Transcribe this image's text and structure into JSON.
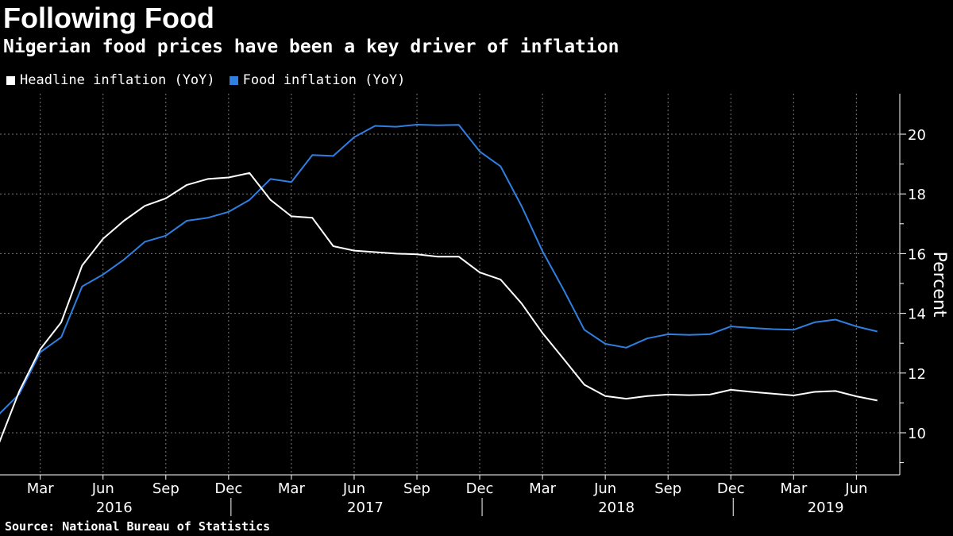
{
  "header": {
    "title": "Following Food",
    "subtitle": "Nigerian food prices have been a key driver of inflation"
  },
  "footer": {
    "source": "Source: National Bureau of Statistics"
  },
  "chart_data": {
    "type": "line",
    "title": "Following Food",
    "subtitle": "Nigerian food prices have been a key driver of inflation",
    "ylabel": "Percent",
    "ylim": [
      8.5,
      21.3
    ],
    "yticks": [
      10,
      12,
      14,
      16,
      18,
      20
    ],
    "grid": true,
    "legend_position": "top-left",
    "x": [
      "2016-01",
      "2016-02",
      "2016-03",
      "2016-04",
      "2016-05",
      "2016-06",
      "2016-07",
      "2016-08",
      "2016-09",
      "2016-10",
      "2016-11",
      "2016-12",
      "2017-01",
      "2017-02",
      "2017-03",
      "2017-04",
      "2017-05",
      "2017-06",
      "2017-07",
      "2017-08",
      "2017-09",
      "2017-10",
      "2017-11",
      "2017-12",
      "2018-01",
      "2018-02",
      "2018-03",
      "2018-04",
      "2018-05",
      "2018-06",
      "2018-07",
      "2018-08",
      "2018-09",
      "2018-10",
      "2018-11",
      "2018-12",
      "2019-01",
      "2019-02",
      "2019-03",
      "2019-04",
      "2019-05",
      "2019-06",
      "2019-07"
    ],
    "x_tick_labels": [
      {
        "month": "2016-03",
        "label": "Mar"
      },
      {
        "month": "2016-06",
        "label": "Jun"
      },
      {
        "month": "2016-09",
        "label": "Sep"
      },
      {
        "month": "2016-12",
        "label": "Dec"
      },
      {
        "month": "2017-03",
        "label": "Mar"
      },
      {
        "month": "2017-06",
        "label": "Jun"
      },
      {
        "month": "2017-09",
        "label": "Sep"
      },
      {
        "month": "2017-12",
        "label": "Dec"
      },
      {
        "month": "2018-03",
        "label": "Mar"
      },
      {
        "month": "2018-06",
        "label": "Jun"
      },
      {
        "month": "2018-09",
        "label": "Sep"
      },
      {
        "month": "2018-12",
        "label": "Dec"
      },
      {
        "month": "2019-03",
        "label": "Mar"
      },
      {
        "month": "2019-06",
        "label": "Jun"
      }
    ],
    "year_labels": [
      {
        "month": "2016-06",
        "label": "2016"
      },
      {
        "month": "2017-06",
        "label": "2017"
      },
      {
        "month": "2018-06",
        "label": "2018"
      },
      {
        "month": "2019-04",
        "label": "2019"
      }
    ],
    "year_separators": [
      "2016-12",
      "2017-12",
      "2018-12"
    ],
    "series": [
      {
        "name": "Headline inflation (YoY)",
        "color": "#ffffff",
        "values": [
          9.6,
          11.4,
          12.8,
          13.7,
          15.6,
          16.5,
          17.1,
          17.6,
          17.85,
          18.3,
          18.5,
          18.55,
          18.7,
          17.8,
          17.25,
          17.2,
          16.25,
          16.1,
          16.05,
          16.0,
          15.98,
          15.9,
          15.9,
          15.37,
          15.13,
          14.33,
          13.34,
          12.48,
          11.61,
          11.23,
          11.14,
          11.23,
          11.28,
          11.26,
          11.28,
          11.44,
          11.37,
          11.31,
          11.25,
          11.37,
          11.4,
          11.22,
          11.08
        ]
      },
      {
        "name": "Food inflation (YoY)",
        "color": "#2f7fe0",
        "values": [
          10.6,
          11.3,
          12.7,
          13.2,
          14.9,
          15.3,
          15.8,
          16.4,
          16.6,
          17.1,
          17.2,
          17.4,
          17.8,
          18.5,
          18.4,
          19.3,
          19.27,
          19.9,
          20.28,
          20.25,
          20.32,
          20.3,
          20.31,
          19.42,
          18.92,
          17.59,
          16.08,
          14.8,
          13.45,
          12.98,
          12.85,
          13.16,
          13.3,
          13.28,
          13.3,
          13.56,
          13.51,
          13.47,
          13.45,
          13.7,
          13.79,
          13.56,
          13.39
        ]
      }
    ]
  }
}
